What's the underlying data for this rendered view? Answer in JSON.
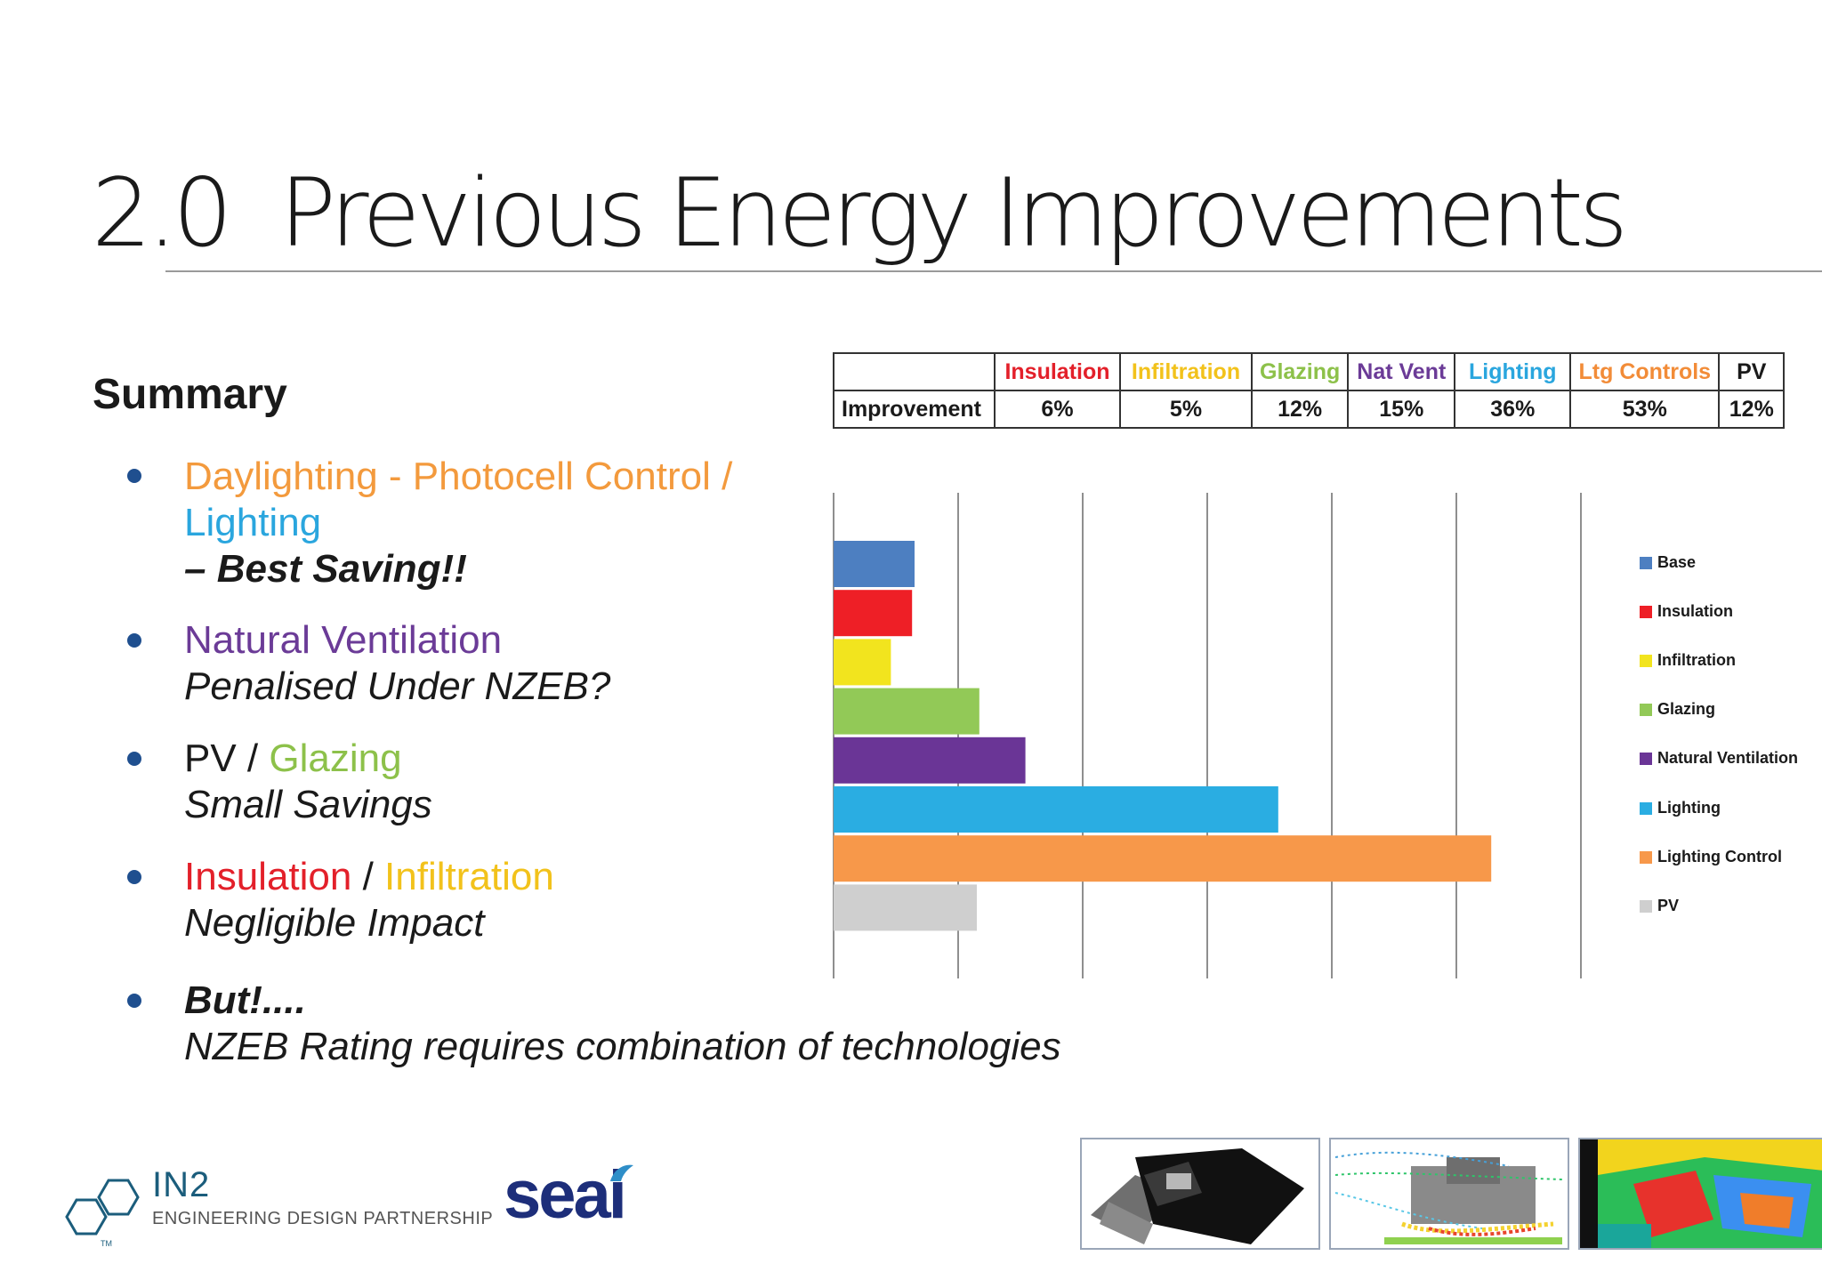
{
  "title": {
    "number": "2.0",
    "text": "Previous Energy Improvements"
  },
  "summary": {
    "heading": "Summary",
    "bullets": [
      {
        "line1a": "Daylighting - Photocell Control /",
        "line1b": "Lighting",
        "line2": "– Best Saving!!"
      },
      {
        "line1": "Natural Ventilation",
        "line2": "Penalised Under NZEB?"
      },
      {
        "line1a": "PV",
        "sep": " / ",
        "line1b": "Glazing",
        "line2": "Small Savings"
      },
      {
        "line1a": "Insulation",
        "sep": " / ",
        "line1b": "Infiltration",
        "line2": "Negligible Impact"
      },
      {
        "line1": "But!....",
        "line2": "NZEB Rating requires combination of technologies"
      }
    ]
  },
  "table": {
    "corner": "",
    "row_label": "Improvement",
    "columns": [
      {
        "header": "Insulation",
        "value": "6%",
        "color": "#e3202a"
      },
      {
        "header": "Infiltration",
        "value": "5%",
        "color": "#f2c21b"
      },
      {
        "header": "Glazing",
        "value": "12%",
        "color": "#8dc14a"
      },
      {
        "header": "Nat Vent",
        "value": "15%",
        "color": "#6b3b97"
      },
      {
        "header": "Lighting",
        "value": "36%",
        "color": "#2aa6de"
      },
      {
        "header": "Ltg Controls",
        "value": "53%",
        "color": "#f28c38"
      },
      {
        "header": "PV",
        "value": "12%",
        "color": "#1a1a1a"
      }
    ]
  },
  "chart_data": {
    "type": "bar",
    "orientation": "horizontal",
    "categories": [
      "Base",
      "Insulation",
      "Infiltration",
      "Glazing",
      "Natural Ventilation",
      "Lighting",
      "Lighting Control",
      "PV"
    ],
    "values": [
      6.5,
      6.3,
      4.6,
      11.7,
      15.4,
      35.7,
      52.8,
      11.5
    ],
    "colors": [
      "#4d7fc1",
      "#ee1f26",
      "#f2e41e",
      "#92c957",
      "#6a3596",
      "#2aade2",
      "#f7984a",
      "#cfcfcf"
    ],
    "xlim": [
      0,
      60
    ],
    "x_gridlines": [
      0,
      10,
      20,
      30,
      40,
      50,
      60
    ],
    "grid": true,
    "title": "",
    "xlabel": "",
    "ylabel": "",
    "tick_labels_shown": false,
    "legend": {
      "position": "right",
      "entries": [
        "Base",
        "Insulation",
        "Infiltration",
        "Glazing",
        "Natural Ventilation",
        "Lighting",
        "Lighting Control",
        "PV"
      ]
    }
  },
  "logos": {
    "in2_name": "IN2",
    "in2_subtitle": "ENGINEERING DESIGN PARTNERSHIP",
    "in2_tm": "TM",
    "seai": "seai"
  },
  "thumbnails": [
    "building-model-render",
    "airflow-simulation",
    "thermal-heatmap-render"
  ]
}
